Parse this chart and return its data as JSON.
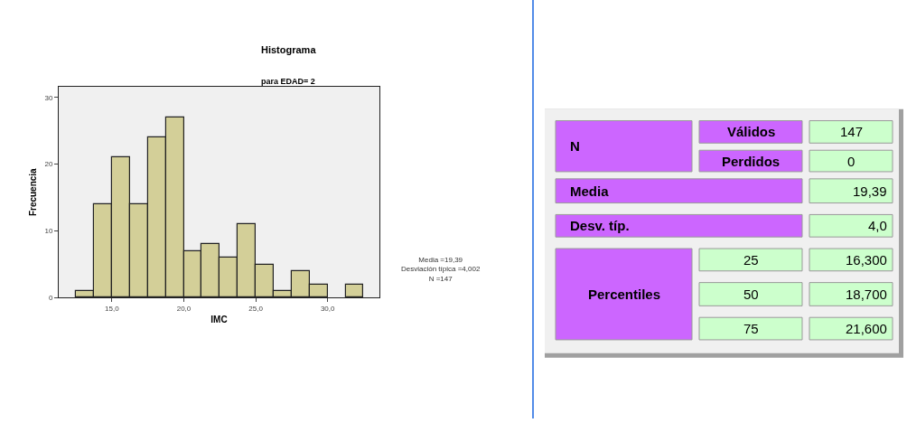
{
  "chart_data": [
    {
      "type": "histogram",
      "title": "Histograma",
      "subtitle": "para EDAD= 2",
      "xlabel": "IMC",
      "ylabel": "Frecuencia",
      "bins": [
        12.5,
        13.75,
        15,
        16.25,
        17.5,
        18.75,
        20,
        21.25,
        22.5,
        23.75,
        25,
        26.25,
        27.5,
        28.75,
        30,
        31.25,
        32.5
      ],
      "values": [
        1,
        14,
        21,
        14,
        24,
        27,
        7,
        8,
        6,
        11,
        5,
        1,
        4,
        2,
        0,
        2
      ],
      "color": "#d3cf98",
      "xlim": [
        11.3,
        33.6
      ],
      "xticks": [
        {
          "value": 15,
          "label": "15,0"
        },
        {
          "value": 20,
          "label": "20,0"
        },
        {
          "value": 25,
          "label": "25,0"
        },
        {
          "value": 30,
          "label": "30,0"
        }
      ],
      "ylim": [
        0,
        31.6
      ],
      "yticks": [
        0,
        10,
        20,
        30
      ],
      "grid": false,
      "annotations": [
        "Media =19,39\nDesviación típica =4,002\nN =147"
      ]
    },
    {
      "type": "other",
      "annotations": [
        "N",
        "Válidos",
        "147",
        "Perdidos",
        "0",
        "Media",
        "19,39",
        "Desv. típ.",
        "4,0",
        "Percentiles",
        "25",
        "16,300",
        "50",
        "18,700",
        "75",
        "21,600"
      ]
    }
  ]
}
